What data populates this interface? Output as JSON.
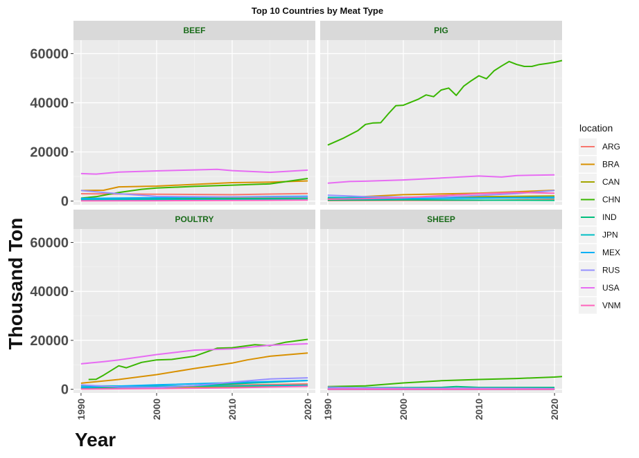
{
  "chart_data": {
    "type": "line",
    "title": "Top 10 Countries by Meat Type",
    "xlabel": "Year",
    "ylabel": "Thousand Ton",
    "xlim": [
      1989,
      2021
    ],
    "ylim": [
      -1500,
      65500
    ],
    "x_ticks": [
      1990,
      2000,
      2010,
      2020
    ],
    "y_ticks": [
      0,
      20000,
      40000,
      60000
    ],
    "y_tick_labels": [
      "0",
      "20000",
      "40000",
      "60000"
    ],
    "grid": true,
    "legend": {
      "title": "location",
      "placement": "right",
      "entries": [
        {
          "name": "ARG",
          "color": "#F8766D"
        },
        {
          "name": "BRA",
          "color": "#D89000"
        },
        {
          "name": "CAN",
          "color": "#A3A500"
        },
        {
          "name": "CHN",
          "color": "#39B600"
        },
        {
          "name": "IND",
          "color": "#00BF7D"
        },
        {
          "name": "JPN",
          "color": "#00BFC4"
        },
        {
          "name": "MEX",
          "color": "#00B0F6"
        },
        {
          "name": "RUS",
          "color": "#9590FF"
        },
        {
          "name": "USA",
          "color": "#E76BF3"
        },
        {
          "name": "VNM",
          "color": "#FF62BC"
        }
      ]
    },
    "panels": [
      {
        "label": "BEEF",
        "series": [
          {
            "name": "ARG",
            "x": [
              1990,
              2000,
              2010,
              2020
            ],
            "y": [
              3000,
              2800,
              2600,
              3100
            ]
          },
          {
            "name": "BRA",
            "x": [
              1990,
              1993,
              1995,
              2000,
              2005,
              2010,
              2015,
              2020
            ],
            "y": [
              4300,
              4400,
              5800,
              6100,
              6800,
              7500,
              7700,
              8200
            ]
          },
          {
            "name": "CAN",
            "x": [
              1990,
              2000,
              2010,
              2020
            ],
            "y": [
              900,
              1200,
              1200,
              1300
            ]
          },
          {
            "name": "CHN",
            "x": [
              1990,
              1992,
              1995,
              1998,
              2000,
              2005,
              2010,
              2015,
              2020
            ],
            "y": [
              1200,
              1800,
              3500,
              4800,
              5300,
              6000,
              6500,
              7000,
              9200
            ]
          },
          {
            "name": "IND",
            "x": [
              1990,
              2000,
              2010,
              2020
            ],
            "y": [
              800,
              900,
              1000,
              1100
            ]
          },
          {
            "name": "JPN",
            "x": [
              1990,
              2000,
              2010,
              2020
            ],
            "y": [
              600,
              550,
              500,
              500
            ]
          },
          {
            "name": "MEX",
            "x": [
              1990,
              2000,
              2010,
              2020
            ],
            "y": [
              1100,
              1400,
              1700,
              2000
            ]
          },
          {
            "name": "RUS",
            "x": [
              1990,
              1995,
              2000,
              2010,
              2020
            ],
            "y": [
              4300,
              3000,
              1900,
              1700,
              1700
            ]
          },
          {
            "name": "USA",
            "x": [
              1990,
              1992,
              1995,
              2000,
              2005,
              2008,
              2010,
              2015,
              2020
            ],
            "y": [
              11200,
              11000,
              11800,
              12300,
              12700,
              12900,
              12400,
              11700,
              12600
            ]
          },
          {
            "name": "VNM",
            "x": [
              1990,
              2000,
              2010,
              2020
            ],
            "y": [
              100,
              150,
              250,
              400
            ]
          }
        ]
      },
      {
        "label": "PIG",
        "series": [
          {
            "name": "ARG",
            "x": [
              1990,
              2000,
              2010,
              2020
            ],
            "y": [
              200,
              250,
              300,
              650
            ]
          },
          {
            "name": "BRA",
            "x": [
              1990,
              2000,
              2010,
              2020
            ],
            "y": [
              1100,
              2600,
              3200,
              4400
            ]
          },
          {
            "name": "CAN",
            "x": [
              1990,
              2000,
              2010,
              2020
            ],
            "y": [
              1100,
              1600,
              1800,
              2100
            ]
          },
          {
            "name": "CHN",
            "x": [
              1990,
              1992,
              1994,
              1995,
              1996,
              1997,
              1998,
              1999,
              2000,
              2002,
              2003,
              2004,
              2005,
              2006,
              2007,
              2008,
              2009,
              2010,
              2011,
              2012,
              2013,
              2014,
              2015,
              2016,
              2017,
              2018,
              2019,
              2020,
              2021
            ],
            "y": [
              22800,
              25500,
              28700,
              31200,
              31800,
              31900,
              35500,
              38800,
              39000,
              41500,
              43200,
              42500,
              45200,
              46000,
              43000,
              46800,
              49000,
              51000,
              49800,
              53000,
              55000,
              56800,
              55600,
              54800,
              54800,
              55600,
              56000,
              56500,
              57200
            ]
          },
          {
            "name": "IND",
            "x": [
              1990,
              2000,
              2010,
              2020
            ],
            "y": [
              400,
              500,
              350,
              300
            ]
          },
          {
            "name": "JPN",
            "x": [
              1990,
              2000,
              2010,
              2020
            ],
            "y": [
              1500,
              1300,
              1300,
              1300
            ]
          },
          {
            "name": "MEX",
            "x": [
              1990,
              2000,
              2010,
              2020
            ],
            "y": [
              800,
              1000,
              1200,
              1600
            ]
          },
          {
            "name": "RUS",
            "x": [
              1990,
              1995,
              2000,
              2005,
              2010,
              2015,
              2020
            ],
            "y": [
              2400,
              1800,
              1600,
              1600,
              2300,
              3100,
              4300
            ]
          },
          {
            "name": "USA",
            "x": [
              1990,
              1993,
              1995,
              2000,
              2005,
              2010,
              2013,
              2015,
              2020
            ],
            "y": [
              7300,
              8000,
              8100,
              8600,
              9400,
              10200,
              9800,
              10400,
              10700
            ]
          },
          {
            "name": "VNM",
            "x": [
              1990,
              1995,
              2000,
              2005,
              2010,
              2015,
              2020
            ],
            "y": [
              750,
              1000,
              1400,
              2200,
              3000,
              3500,
              3200
            ]
          }
        ]
      },
      {
        "label": "POULTRY",
        "series": [
          {
            "name": "ARG",
            "x": [
              1990,
              2000,
              2010,
              2020
            ],
            "y": [
              400,
              900,
              1700,
              2200
            ]
          },
          {
            "name": "BRA",
            "x": [
              1990,
              1995,
              2000,
              2005,
              2010,
              2012,
              2015,
              2020
            ],
            "y": [
              2500,
              4000,
              6000,
              8500,
              10700,
              12000,
              13500,
              14800
            ]
          },
          {
            "name": "CAN",
            "x": [
              1990,
              2000,
              2010,
              2020
            ],
            "y": [
              600,
              900,
              1100,
              1300
            ]
          },
          {
            "name": "CHN",
            "x": [
              1991,
              1992,
              1993,
              1995,
              1996,
              1998,
              2000,
              2002,
              2005,
              2008,
              2010,
              2013,
              2015,
              2017,
              2020
            ],
            "y": [
              4000,
              4100,
              5800,
              9600,
              8800,
              11000,
              12000,
              12200,
              13500,
              16800,
              17000,
              18200,
              17800,
              19200,
              20400
            ]
          },
          {
            "name": "IND",
            "x": [
              1990,
              2000,
              2010,
              2020
            ],
            "y": [
              300,
              800,
              2200,
              3600
            ]
          },
          {
            "name": "JPN",
            "x": [
              1990,
              2000,
              2010,
              2020
            ],
            "y": [
              1400,
              1300,
              1400,
              1700
            ]
          },
          {
            "name": "MEX",
            "x": [
              1990,
              2000,
              2010,
              2020
            ],
            "y": [
              800,
              1800,
              2700,
              3600
            ]
          },
          {
            "name": "RUS",
            "x": [
              1990,
              1995,
              2000,
              2005,
              2010,
              2015,
              2020
            ],
            "y": [
              1800,
              900,
              800,
              1500,
              2900,
              4200,
              4700
            ]
          },
          {
            "name": "USA",
            "x": [
              1990,
              1993,
              1995,
              2000,
              2005,
              2010,
              2015,
              2020
            ],
            "y": [
              10400,
              11300,
              12000,
              14200,
              16000,
              16500,
              18000,
              18600
            ]
          },
          {
            "name": "VNM",
            "x": [
              1990,
              2000,
              2010,
              2020
            ],
            "y": [
              100,
              300,
              600,
              1200
            ]
          }
        ]
      },
      {
        "label": "SHEEP",
        "series": [
          {
            "name": "ARG",
            "x": [
              1990,
              2000,
              2010,
              2020
            ],
            "y": [
              100,
              60,
              50,
              50
            ]
          },
          {
            "name": "BRA",
            "x": [
              1990,
              2000,
              2010,
              2020
            ],
            "y": [
              80,
              90,
              90,
              100
            ]
          },
          {
            "name": "CAN",
            "x": [
              1990,
              2000,
              2010,
              2020
            ],
            "y": [
              10,
              15,
              15,
              15
            ]
          },
          {
            "name": "CHN",
            "x": [
              1990,
              1995,
              2000,
              2005,
              2010,
              2015,
              2020,
              2021
            ],
            "y": [
              1100,
              1400,
              2600,
              3500,
              4000,
              4400,
              5000,
              5200
            ]
          },
          {
            "name": "IND",
            "x": [
              1990,
              2000,
              2005,
              2007,
              2010,
              2020
            ],
            "y": [
              650,
              700,
              750,
              1100,
              750,
              750
            ]
          },
          {
            "name": "JPN",
            "x": [
              1990,
              2000,
              2010,
              2020
            ],
            "y": [
              5,
              5,
              5,
              5
            ]
          },
          {
            "name": "MEX",
            "x": [
              1990,
              2000,
              2010,
              2020
            ],
            "y": [
              30,
              40,
              50,
              60
            ]
          },
          {
            "name": "RUS",
            "x": [
              1990,
              1995,
              2000,
              2010,
              2020
            ],
            "y": [
              900,
              500,
              400,
              450,
              300
            ]
          },
          {
            "name": "USA",
            "x": [
              1990,
              2000,
              2010,
              2020
            ],
            "y": [
              200,
              120,
              80,
              60
            ]
          },
          {
            "name": "VNM",
            "x": [
              1990,
              2000,
              2010,
              2020
            ],
            "y": [
              5,
              5,
              5,
              5
            ]
          }
        ]
      }
    ]
  }
}
